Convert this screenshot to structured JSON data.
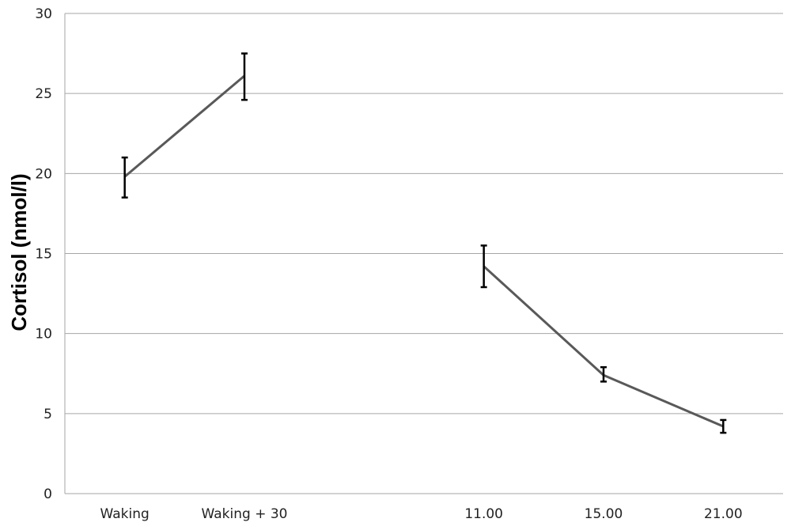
{
  "chart_data": {
    "type": "line",
    "title": "",
    "xlabel": "",
    "ylabel": "Cortisol (nmol/l)",
    "categories": [
      "Waking",
      "Waking + 30",
      "",
      "11.00",
      "15.00",
      "21.00"
    ],
    "ylim": [
      0,
      30
    ],
    "y_ticks": [
      0,
      5,
      10,
      15,
      20,
      25,
      30
    ],
    "grid": "horizontal",
    "segments": [
      {
        "points": [
          {
            "category": "Waking",
            "value": 19.8,
            "error_low": 18.5,
            "error_high": 21.0
          },
          {
            "category": "Waking + 30",
            "value": 26.1,
            "error_low": 24.6,
            "error_high": 27.5
          }
        ]
      },
      {
        "points": [
          {
            "category": "11.00",
            "value": 14.2,
            "error_low": 12.9,
            "error_high": 15.5
          },
          {
            "category": "15.00",
            "value": 7.4,
            "error_low": 7.0,
            "error_high": 7.9
          },
          {
            "category": "21.00",
            "value": 4.2,
            "error_low": 3.8,
            "error_high": 4.6
          }
        ]
      }
    ],
    "colors": {
      "line": "#595959",
      "error_bar": "#000000",
      "grid": "#a6a6a6"
    }
  }
}
